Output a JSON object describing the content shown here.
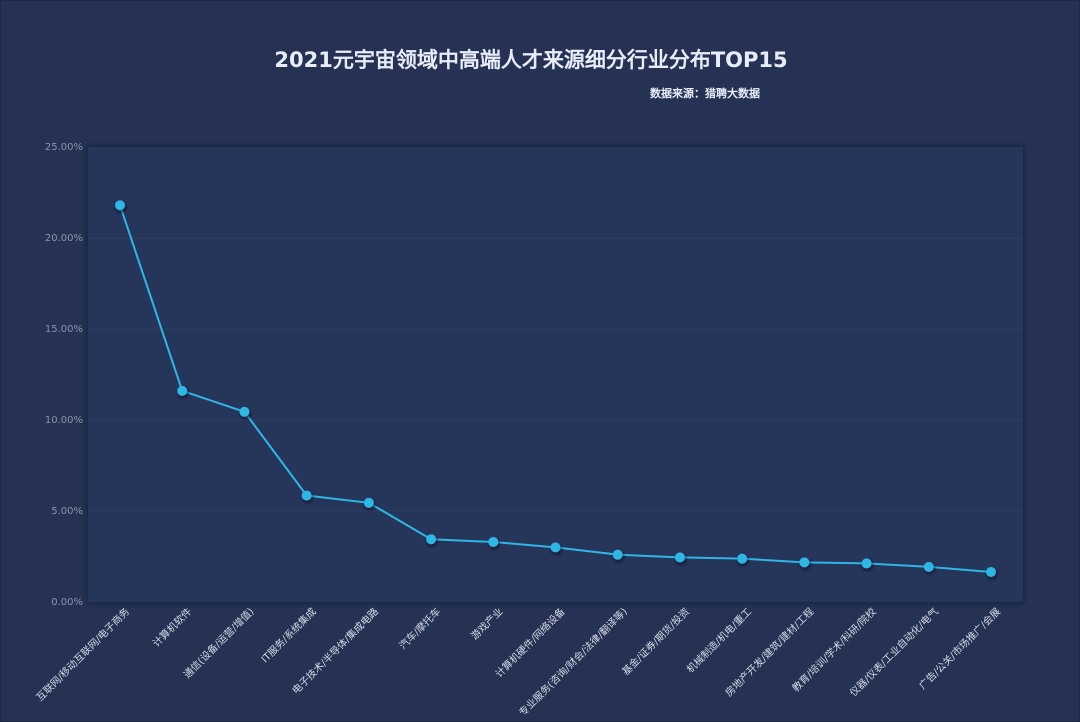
{
  "chart_data": {
    "type": "line",
    "title": "2021元宇宙领域中高端人才来源细分行业分布TOP15",
    "source": "数据来源：猎聘大数据",
    "categories": [
      "互联网/移动互联网/电子商务",
      "计算机软件",
      "通信(设备/运营/增值)",
      "IT服务/系统集成",
      "电子技术/半导体/集成电路",
      "汽车/摩托车",
      "游戏产业",
      "计算机硬件/网络设备",
      "专业服务(咨询/财会/法律/翻译等)",
      "基金/证券/期货/投资",
      "机械制造/机电/重工",
      "房地产开发/建筑/建材/工程",
      "教育/培训/学术/科研/院校",
      "仪器/仪表/工业自动化/电气",
      "广告/公关/市场推广/会展"
    ],
    "values": [
      21.8,
      11.6,
      10.45,
      5.85,
      5.45,
      3.45,
      3.3,
      3.0,
      2.6,
      2.45,
      2.38,
      2.18,
      2.12,
      1.93,
      1.65
    ],
    "ylim": [
      0,
      25
    ],
    "yticks": [
      "0.00%",
      "5.00%",
      "10.00%",
      "15.00%",
      "20.00%",
      "25.00%"
    ],
    "grid": true,
    "color": "#2fb6e5"
  }
}
